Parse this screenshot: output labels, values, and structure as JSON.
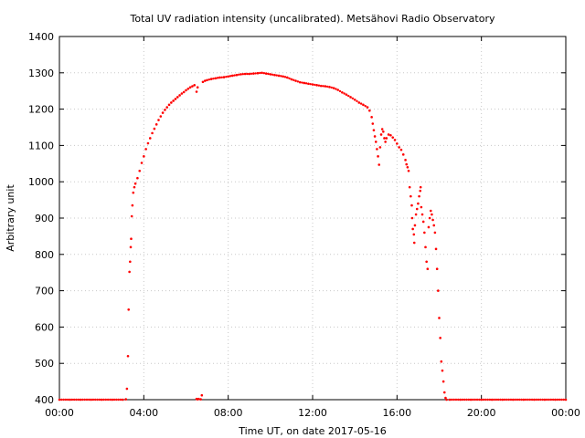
{
  "chart_data": {
    "type": "scatter",
    "title": "Total UV radiation intensity (uncalibrated). Metsähovi Radio Observatory",
    "xlabel": "Time UT, on date 2017-05-16",
    "ylabel": "Arbitrary unit",
    "xlim": [
      0,
      24
    ],
    "ylim": [
      400,
      1400
    ],
    "x_ticks": [
      {
        "value": 0,
        "label": "00:00"
      },
      {
        "value": 4,
        "label": "04:00"
      },
      {
        "value": 8,
        "label": "08:00"
      },
      {
        "value": 12,
        "label": "12:00"
      },
      {
        "value": 16,
        "label": "16:00"
      },
      {
        "value": 20,
        "label": "20:00"
      },
      {
        "value": 24,
        "label": "00:00"
      }
    ],
    "y_ticks": [
      {
        "value": 400,
        "label": "400"
      },
      {
        "value": 500,
        "label": "500"
      },
      {
        "value": 600,
        "label": "600"
      },
      {
        "value": 700,
        "label": "700"
      },
      {
        "value": 800,
        "label": "800"
      },
      {
        "value": 900,
        "label": "900"
      },
      {
        "value": 1000,
        "label": "1000"
      },
      {
        "value": 1100,
        "label": "1100"
      },
      {
        "value": 1200,
        "label": "1200"
      },
      {
        "value": 1300,
        "label": "1300"
      },
      {
        "value": 1400,
        "label": "1400"
      }
    ],
    "grid": true,
    "marker_color": "#ff0000",
    "series": [
      {
        "points": [
          [
            0.0,
            400
          ],
          [
            0.5,
            400
          ],
          [
            1.0,
            400
          ],
          [
            1.5,
            400
          ],
          [
            2.0,
            400
          ],
          [
            2.5,
            400
          ],
          [
            3.0,
            400
          ],
          [
            3.15,
            401
          ],
          [
            3.2,
            430
          ],
          [
            3.25,
            520
          ],
          [
            3.28,
            648
          ],
          [
            3.32,
            752
          ],
          [
            3.35,
            780
          ],
          [
            3.38,
            820
          ],
          [
            3.4,
            843
          ],
          [
            3.43,
            905
          ],
          [
            3.46,
            935
          ],
          [
            3.5,
            970
          ],
          [
            3.55,
            985
          ],
          [
            3.6,
            995
          ],
          [
            3.7,
            1010
          ],
          [
            3.8,
            1030
          ],
          [
            3.9,
            1052
          ],
          [
            4.0,
            1070
          ],
          [
            4.1,
            1090
          ],
          [
            4.2,
            1106
          ],
          [
            4.3,
            1120
          ],
          [
            4.4,
            1134
          ],
          [
            4.5,
            1146
          ],
          [
            4.6,
            1158
          ],
          [
            4.7,
            1170
          ],
          [
            4.8,
            1180
          ],
          [
            4.9,
            1190
          ],
          [
            5.0,
            1198
          ],
          [
            5.1,
            1205
          ],
          [
            5.2,
            1212
          ],
          [
            5.3,
            1218
          ],
          [
            5.4,
            1223
          ],
          [
            5.5,
            1228
          ],
          [
            5.6,
            1233
          ],
          [
            5.7,
            1238
          ],
          [
            5.8,
            1243
          ],
          [
            5.9,
            1247
          ],
          [
            6.0,
            1252
          ],
          [
            6.1,
            1256
          ],
          [
            6.2,
            1260
          ],
          [
            6.3,
            1263
          ],
          [
            6.4,
            1266
          ],
          [
            6.5,
            1248
          ],
          [
            6.55,
            1260
          ],
          [
            6.5,
            402
          ],
          [
            6.55,
            401
          ],
          [
            6.6,
            402
          ],
          [
            6.7,
            401
          ],
          [
            6.75,
            412
          ],
          [
            6.8,
            1275
          ],
          [
            6.9,
            1278
          ],
          [
            7.0,
            1280
          ],
          [
            7.2,
            1283
          ],
          [
            7.4,
            1285
          ],
          [
            7.6,
            1287
          ],
          [
            7.8,
            1288
          ],
          [
            8.0,
            1290
          ],
          [
            8.2,
            1292
          ],
          [
            8.4,
            1294
          ],
          [
            8.6,
            1296
          ],
          [
            8.8,
            1297
          ],
          [
            9.0,
            1297
          ],
          [
            9.2,
            1298
          ],
          [
            9.4,
            1299
          ],
          [
            9.6,
            1300
          ],
          [
            9.8,
            1298
          ],
          [
            10.0,
            1296
          ],
          [
            10.2,
            1294
          ],
          [
            10.4,
            1292
          ],
          [
            10.6,
            1290
          ],
          [
            10.8,
            1287
          ],
          [
            11.0,
            1282
          ],
          [
            11.2,
            1278
          ],
          [
            11.4,
            1274
          ],
          [
            11.6,
            1272
          ],
          [
            11.8,
            1270
          ],
          [
            12.0,
            1268
          ],
          [
            12.2,
            1266
          ],
          [
            12.4,
            1264
          ],
          [
            12.6,
            1263
          ],
          [
            12.8,
            1261
          ],
          [
            13.0,
            1258
          ],
          [
            13.2,
            1253
          ],
          [
            13.4,
            1246
          ],
          [
            13.6,
            1240
          ],
          [
            13.8,
            1233
          ],
          [
            14.0,
            1226
          ],
          [
            14.2,
            1218
          ],
          [
            14.4,
            1212
          ],
          [
            14.6,
            1205
          ],
          [
            14.7,
            1196
          ],
          [
            14.8,
            1178
          ],
          [
            14.85,
            1160
          ],
          [
            14.9,
            1142
          ],
          [
            14.95,
            1125
          ],
          [
            15.0,
            1110
          ],
          [
            15.05,
            1090
          ],
          [
            15.1,
            1070
          ],
          [
            15.15,
            1047
          ],
          [
            15.2,
            1095
          ],
          [
            15.25,
            1130
          ],
          [
            15.3,
            1145
          ],
          [
            15.35,
            1138
          ],
          [
            15.4,
            1120
          ],
          [
            15.45,
            1110
          ],
          [
            15.5,
            1120
          ],
          [
            15.6,
            1130
          ],
          [
            15.7,
            1128
          ],
          [
            15.8,
            1122
          ],
          [
            15.9,
            1115
          ],
          [
            16.0,
            1105
          ],
          [
            16.1,
            1095
          ],
          [
            16.2,
            1088
          ],
          [
            16.3,
            1075
          ],
          [
            16.4,
            1060
          ],
          [
            16.45,
            1048
          ],
          [
            16.5,
            1040
          ],
          [
            16.55,
            1030
          ],
          [
            16.6,
            985
          ],
          [
            16.65,
            960
          ],
          [
            16.7,
            935
          ],
          [
            16.72,
            900
          ],
          [
            16.75,
            870
          ],
          [
            16.8,
            855
          ],
          [
            16.82,
            832
          ],
          [
            16.85,
            880
          ],
          [
            16.9,
            910
          ],
          [
            16.95,
            925
          ],
          [
            17.0,
            940
          ],
          [
            17.05,
            960
          ],
          [
            17.1,
            975
          ],
          [
            17.12,
            985
          ],
          [
            17.15,
            930
          ],
          [
            17.2,
            910
          ],
          [
            17.25,
            890
          ],
          [
            17.3,
            860
          ],
          [
            17.35,
            820
          ],
          [
            17.4,
            780
          ],
          [
            17.45,
            760
          ],
          [
            17.5,
            875
          ],
          [
            17.55,
            900
          ],
          [
            17.6,
            920
          ],
          [
            17.65,
            910
          ],
          [
            17.7,
            895
          ],
          [
            17.75,
            880
          ],
          [
            17.8,
            860
          ],
          [
            17.85,
            815
          ],
          [
            17.9,
            760
          ],
          [
            17.95,
            700
          ],
          [
            18.0,
            625
          ],
          [
            18.05,
            570
          ],
          [
            18.1,
            505
          ],
          [
            18.15,
            480
          ],
          [
            18.2,
            450
          ],
          [
            18.25,
            420
          ],
          [
            18.3,
            405
          ],
          [
            18.35,
            400
          ],
          [
            18.5,
            400
          ],
          [
            19.0,
            400
          ],
          [
            19.5,
            400
          ],
          [
            20.0,
            400
          ],
          [
            20.5,
            400
          ],
          [
            21.0,
            400
          ],
          [
            21.5,
            400
          ],
          [
            22.0,
            400
          ],
          [
            22.5,
            400
          ],
          [
            23.0,
            400
          ],
          [
            23.5,
            400
          ],
          [
            24.0,
            400
          ]
        ]
      }
    ]
  }
}
